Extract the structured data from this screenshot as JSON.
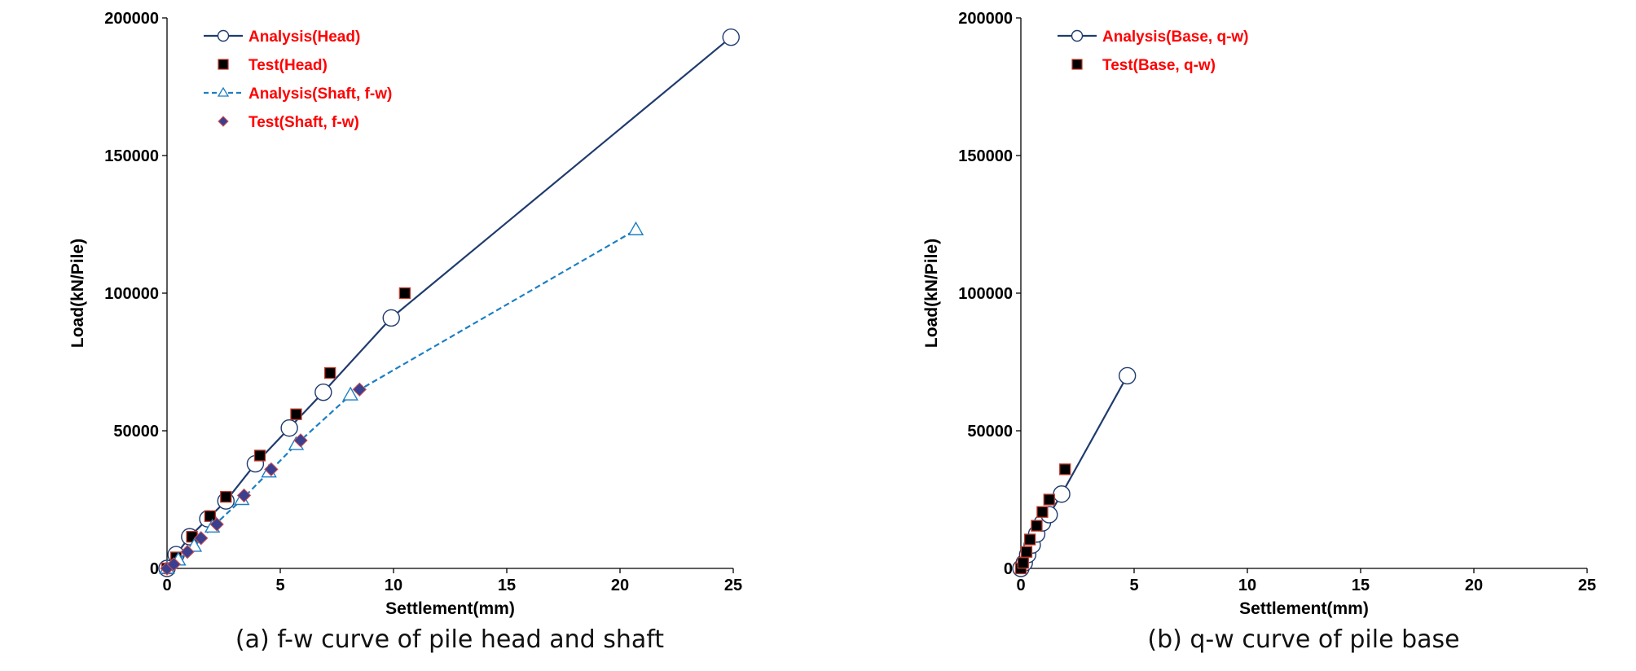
{
  "colors": {
    "analysis_head": "#1f3b6e",
    "analysis_shaft": "#1b7fc4",
    "test_fill": "#000000",
    "test_edge": "#c0392b",
    "diamond_fill": "#3b3f8f",
    "legend_text": "#ff0000"
  },
  "chart_data": [
    {
      "type": "line",
      "caption": "(a) f-w curve of pile head and shaft",
      "xlabel": "Settlement(mm)",
      "ylabel": "Load(kN/Pile)",
      "xlim": [
        0,
        25
      ],
      "ylim": [
        0,
        200000
      ],
      "xticks": [
        "0",
        "5",
        "10",
        "15",
        "20",
        "25"
      ],
      "yticks": [
        "0",
        "50000",
        "100000",
        "150000",
        "200000"
      ],
      "legend_position": "top-left",
      "grid": false,
      "series": [
        {
          "name": "Analysis(Head)",
          "kind": "line",
          "marker": "open-circle",
          "color": "#1f3b6e",
          "x": [
            0,
            0.4,
            1.0,
            1.8,
            2.6,
            3.9,
            5.4,
            6.9,
            9.9,
            24.9
          ],
          "y": [
            0,
            5000,
            11500,
            18000,
            24500,
            38000,
            51000,
            64000,
            91000,
            193000
          ]
        },
        {
          "name": "Test(Head)",
          "kind": "scatter",
          "marker": "square",
          "color": "#000000",
          "x": [
            0,
            0.4,
            1.1,
            1.9,
            2.6,
            4.1,
            5.7,
            7.2,
            10.5
          ],
          "y": [
            0,
            4000,
            11500,
            19000,
            26000,
            41000,
            56000,
            71000,
            100000
          ]
        },
        {
          "name": "Analysis(Shaft, f-w)",
          "kind": "line",
          "dashed": true,
          "marker": "open-triangle",
          "color": "#1b7fc4",
          "x": [
            0,
            0.5,
            1.2,
            2.0,
            3.3,
            4.5,
            5.7,
            8.1,
            20.7
          ],
          "y": [
            0,
            3000,
            8000,
            15000,
            25000,
            35000,
            45000,
            63000,
            123000
          ]
        },
        {
          "name": "Test(Shaft, f-w)",
          "kind": "scatter",
          "marker": "diamond",
          "color": "#3b3f8f",
          "x": [
            0,
            0.3,
            0.9,
            1.5,
            2.2,
            3.4,
            4.6,
            5.9,
            8.5
          ],
          "y": [
            0,
            1500,
            6000,
            11000,
            16000,
            26500,
            36000,
            46500,
            65000
          ]
        }
      ]
    },
    {
      "type": "line",
      "caption": "(b) q-w curve of pile base",
      "xlabel": "Settlement(mm)",
      "ylabel": "Load(kN/Pile)",
      "xlim": [
        0,
        25
      ],
      "ylim": [
        0,
        200000
      ],
      "xticks": [
        "0",
        "5",
        "10",
        "15",
        "20",
        "25"
      ],
      "yticks": [
        "0",
        "50000",
        "100000",
        "150000",
        "200000"
      ],
      "legend_position": "top-left",
      "grid": false,
      "series": [
        {
          "name": "Analysis(Base, q-w)",
          "kind": "line",
          "marker": "open-circle",
          "color": "#1f3b6e",
          "x": [
            0,
            0.15,
            0.3,
            0.5,
            0.7,
            0.95,
            1.25,
            1.8,
            4.7
          ],
          "y": [
            0,
            2000,
            5000,
            8500,
            12500,
            16500,
            19500,
            27000,
            70000
          ]
        },
        {
          "name": "Test(Base, q-w)",
          "kind": "scatter",
          "marker": "square",
          "color": "#000000",
          "x": [
            0,
            0.1,
            0.25,
            0.4,
            0.7,
            0.95,
            1.25,
            1.95
          ],
          "y": [
            0,
            2000,
            6000,
            10500,
            15500,
            20500,
            25000,
            36000
          ]
        }
      ]
    }
  ]
}
